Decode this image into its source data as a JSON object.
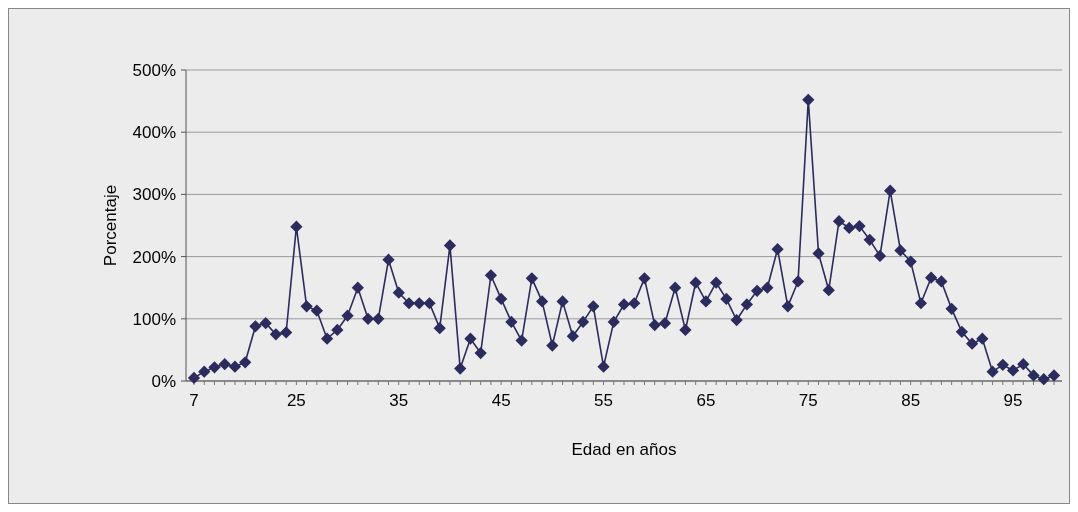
{
  "chart_data": {
    "type": "line",
    "xlabel": "Edad en años",
    "ylabel": "Porcentaje",
    "categories": [
      "7",
      null,
      null,
      null,
      null,
      null,
      null,
      null,
      null,
      null,
      "25",
      null,
      null,
      null,
      null,
      null,
      null,
      null,
      null,
      null,
      "35",
      null,
      null,
      null,
      null,
      null,
      null,
      null,
      null,
      null,
      "45",
      null,
      null,
      null,
      null,
      null,
      null,
      null,
      null,
      null,
      "55",
      null,
      null,
      null,
      null,
      null,
      null,
      null,
      null,
      null,
      "65",
      null,
      null,
      null,
      null,
      null,
      null,
      null,
      null,
      null,
      "75",
      null,
      null,
      null,
      null,
      null,
      null,
      null,
      null,
      null,
      "85",
      null,
      null,
      null,
      null,
      null,
      null,
      null,
      null,
      null,
      "95",
      null,
      null,
      null,
      null
    ],
    "series": [
      {
        "color": "#2b2b5e",
        "values": [
          5,
          15,
          22,
          27,
          23,
          30,
          88,
          93,
          75,
          78,
          248,
          120,
          113,
          68,
          82,
          105,
          150,
          100,
          100,
          195,
          142,
          125,
          125,
          125,
          85,
          218,
          20,
          68,
          45,
          170,
          132,
          95,
          65,
          165,
          128,
          57,
          128,
          72,
          95,
          120,
          23,
          95,
          123,
          125,
          165,
          90,
          93,
          150,
          82,
          158,
          128,
          158,
          132,
          98,
          123,
          145,
          150,
          212,
          120,
          160,
          452,
          205,
          146,
          257,
          246,
          249,
          227,
          201,
          306,
          210,
          192,
          125,
          166,
          160,
          116,
          79,
          60,
          68,
          15,
          26,
          17,
          27,
          9,
          3,
          9
        ]
      }
    ],
    "ylim": [
      0,
      500
    ],
    "yticks": [
      {
        "value": 0,
        "label": "0%"
      },
      {
        "value": 100,
        "label": "100%"
      },
      {
        "value": 200,
        "label": "200%"
      },
      {
        "value": 300,
        "label": "300%"
      },
      {
        "value": 400,
        "label": "400%"
      },
      {
        "value": 500,
        "label": "500%"
      }
    ],
    "grid": "y",
    "marker": "diamond",
    "line_style": "solid"
  }
}
